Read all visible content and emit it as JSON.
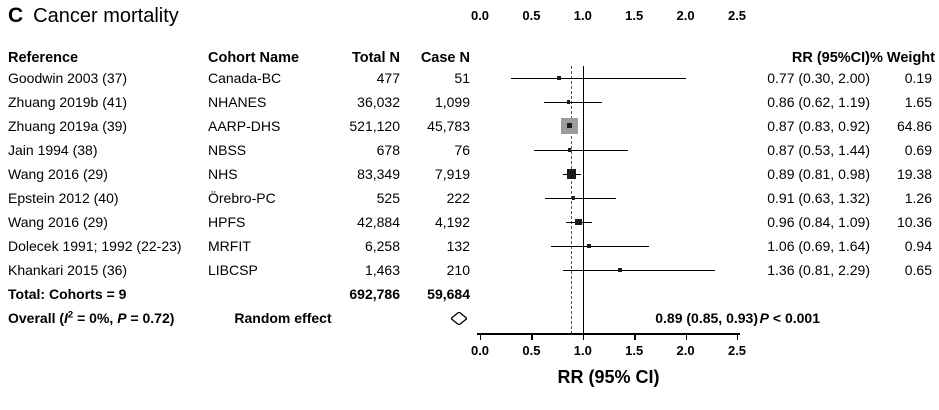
{
  "panel": {
    "label": "C",
    "title": "Cancer mortality"
  },
  "columns": {
    "reference": "Reference",
    "cohort": "Cohort Name",
    "total_n": "Total N",
    "case_n": "Case N",
    "rr": "RR (95%CI)",
    "weight": "% Weight"
  },
  "axis": {
    "label": "RR (95% CI)",
    "ticks": [
      "0.0",
      "0.5",
      "1.0",
      "1.5",
      "2.0",
      "2.5"
    ],
    "tick_values": [
      0,
      0.5,
      1,
      1.5,
      2,
      2.5
    ],
    "min": 0,
    "max": 2.5,
    "reference_line": 1.0,
    "overall_line": 0.89
  },
  "rows": [
    {
      "reference": "Goodwin 2003 (37)",
      "cohort": "Canada-BC",
      "total_n": "477",
      "case_n": "51",
      "rr_text": "0.77 (0.30, 2.00)",
      "weight": "0.19"
    },
    {
      "reference": "Zhuang 2019b (41)",
      "cohort": "NHANES",
      "total_n": "36,032",
      "case_n": "1,099",
      "rr_text": "0.86 (0.62, 1.19)",
      "weight": "1.65"
    },
    {
      "reference": "Zhuang 2019a (39)",
      "cohort": "AARP-DHS",
      "total_n": "521,120",
      "case_n": "45,783",
      "rr_text": "0.87 (0.83, 0.92)",
      "weight": "64.86"
    },
    {
      "reference": "Jain 1994 (38)",
      "cohort": "NBSS",
      "total_n": "678",
      "case_n": "76",
      "rr_text": "0.87 (0.53, 1.44)",
      "weight": "0.69"
    },
    {
      "reference": "Wang 2016 (29)",
      "cohort": "NHS",
      "total_n": "83,349",
      "case_n": "7,919",
      "rr_text": "0.89 (0.81, 0.98)",
      "weight": "19.38"
    },
    {
      "reference": "Epstein 2012 (40)",
      "cohort": "Örebro-PC",
      "total_n": "525",
      "case_n": "222",
      "rr_text": "0.91 (0.63, 1.32)",
      "weight": "1.26"
    },
    {
      "reference": "Wang 2016 (29)",
      "cohort": "HPFS",
      "total_n": "42,884",
      "case_n": "4,192",
      "rr_text": "0.96 (0.84, 1.09)",
      "weight": "10.36"
    },
    {
      "reference": "Dolecek 1991; 1992 (22-23)",
      "cohort": "MRFIT",
      "total_n": "6,258",
      "case_n": "132",
      "rr_text": "1.06 (0.69, 1.64)",
      "weight": "0.94"
    },
    {
      "reference": "Khankari 2015 (36)",
      "cohort": "LIBCSP",
      "total_n": "1,463",
      "case_n": "210",
      "rr_text": "1.36 (0.81, 2.29)",
      "weight": "0.65"
    }
  ],
  "total_row": {
    "label": "Total: Cohorts = 9",
    "total_n": "692,786",
    "case_n": "59,684"
  },
  "overall_row": {
    "label_pre": "Overall (",
    "i_label": "I",
    "i_sup": "2",
    "label_mid": " = 0%, ",
    "p_label": "P",
    "label_post": " = 0.72)",
    "method": "Random effect",
    "rr_text": "0.89 (0.85, 0.93)",
    "p_label2": "P",
    "p_rest": " < 0.001"
  },
  "chart_data": {
    "type": "forest",
    "title": "Cancer mortality",
    "xlabel": "RR (95% CI)",
    "xlim": [
      0,
      2.5
    ],
    "x_ticks": [
      0,
      0.5,
      1,
      1.5,
      2,
      2.5
    ],
    "reference_line": 1.0,
    "studies": [
      {
        "label": "Goodwin 2003 (37)",
        "cohort": "Canada-BC",
        "total_n": 477,
        "case_n": 51,
        "rr": 0.77,
        "ci": [
          0.3,
          2.0
        ],
        "weight_pct": 0.19
      },
      {
        "label": "Zhuang 2019b (41)",
        "cohort": "NHANES",
        "total_n": 36032,
        "case_n": 1099,
        "rr": 0.86,
        "ci": [
          0.62,
          1.19
        ],
        "weight_pct": 1.65
      },
      {
        "label": "Zhuang 2019a (39)",
        "cohort": "AARP-DHS",
        "total_n": 521120,
        "case_n": 45783,
        "rr": 0.87,
        "ci": [
          0.83,
          0.92
        ],
        "weight_pct": 64.86
      },
      {
        "label": "Jain 1994 (38)",
        "cohort": "NBSS",
        "total_n": 678,
        "case_n": 76,
        "rr": 0.87,
        "ci": [
          0.53,
          1.44
        ],
        "weight_pct": 0.69
      },
      {
        "label": "Wang 2016 (29)",
        "cohort": "NHS",
        "total_n": 83349,
        "case_n": 7919,
        "rr": 0.89,
        "ci": [
          0.81,
          0.98
        ],
        "weight_pct": 19.38
      },
      {
        "label": "Epstein 2012 (40)",
        "cohort": "Örebro-PC",
        "total_n": 525,
        "case_n": 222,
        "rr": 0.91,
        "ci": [
          0.63,
          1.32
        ],
        "weight_pct": 1.26
      },
      {
        "label": "Wang 2016 (29)",
        "cohort": "HPFS",
        "total_n": 42884,
        "case_n": 4192,
        "rr": 0.96,
        "ci": [
          0.84,
          1.09
        ],
        "weight_pct": 10.36
      },
      {
        "label": "Dolecek 1991; 1992 (22-23)",
        "cohort": "MRFIT",
        "total_n": 6258,
        "case_n": 132,
        "rr": 1.06,
        "ci": [
          0.69,
          1.64
        ],
        "weight_pct": 0.94
      },
      {
        "label": "Khankari 2015 (36)",
        "cohort": "LIBCSP",
        "total_n": 1463,
        "case_n": 210,
        "rr": 1.36,
        "ci": [
          0.81,
          2.29
        ],
        "weight_pct": 0.65
      }
    ],
    "total": {
      "cohorts": 9,
      "total_n": 692786,
      "case_n": 59684
    },
    "overall": {
      "model": "Random effect",
      "rr": 0.89,
      "ci": [
        0.85,
        0.93
      ],
      "p": "< 0.001",
      "i_squared": "0%",
      "heterogeneity_p": "0.72"
    }
  }
}
